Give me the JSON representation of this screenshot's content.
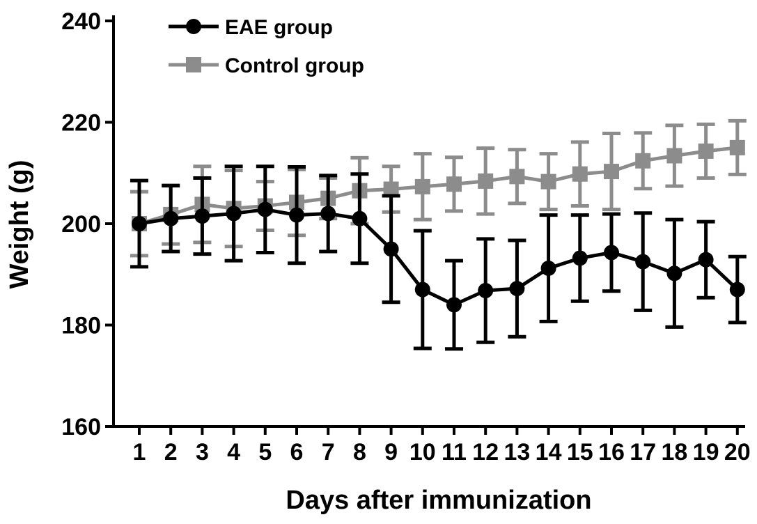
{
  "chart_data": {
    "type": "line",
    "title": "",
    "xlabel": "Days after immunization",
    "ylabel": "Weight (g)",
    "x": [
      1,
      2,
      3,
      4,
      5,
      6,
      7,
      8,
      9,
      10,
      11,
      12,
      13,
      14,
      15,
      16,
      17,
      18,
      19,
      20
    ],
    "x_tick_labels": [
      "1",
      "2",
      "3",
      "4",
      "5",
      "6",
      "7",
      "8",
      "9",
      "10",
      "11",
      "12",
      "13",
      "14",
      "15",
      "16",
      "17",
      "18",
      "19",
      "20"
    ],
    "ylim": [
      160,
      240
    ],
    "y_ticks": [
      160,
      180,
      200,
      220,
      240
    ],
    "y_tick_labels": [
      "160",
      "180",
      "200",
      "220",
      "240"
    ],
    "grid": false,
    "legend_position": "top-left",
    "series": [
      {
        "name": "EAE group",
        "color": "#000000",
        "marker": "circle",
        "values": [
          200.0,
          201.0,
          201.5,
          202.0,
          202.8,
          201.7,
          202.0,
          201.0,
          195.0,
          187.0,
          184.0,
          186.8,
          187.2,
          191.2,
          193.2,
          194.3,
          192.5,
          190.2,
          192.9,
          187.0
        ],
        "error": [
          8.5,
          6.5,
          7.5,
          9.3,
          8.5,
          9.5,
          7.5,
          8.8,
          10.5,
          11.6,
          8.7,
          10.2,
          9.5,
          10.5,
          8.5,
          7.6,
          9.6,
          10.6,
          7.5,
          6.5
        ]
      },
      {
        "name": "Control group",
        "color": "#8c8c8c",
        "marker": "square",
        "values": [
          200.0,
          201.8,
          203.8,
          203.0,
          203.5,
          204.2,
          205.0,
          206.5,
          206.8,
          207.3,
          207.8,
          208.4,
          209.3,
          208.3,
          209.8,
          210.3,
          212.4,
          213.4,
          214.3,
          215.0
        ],
        "error": [
          6.3,
          5.8,
          7.5,
          7.5,
          4.8,
          6.5,
          4.0,
          6.5,
          4.5,
          6.5,
          5.3,
          6.5,
          5.3,
          5.5,
          6.3,
          7.5,
          5.5,
          6.0,
          5.3,
          5.3
        ]
      }
    ]
  }
}
